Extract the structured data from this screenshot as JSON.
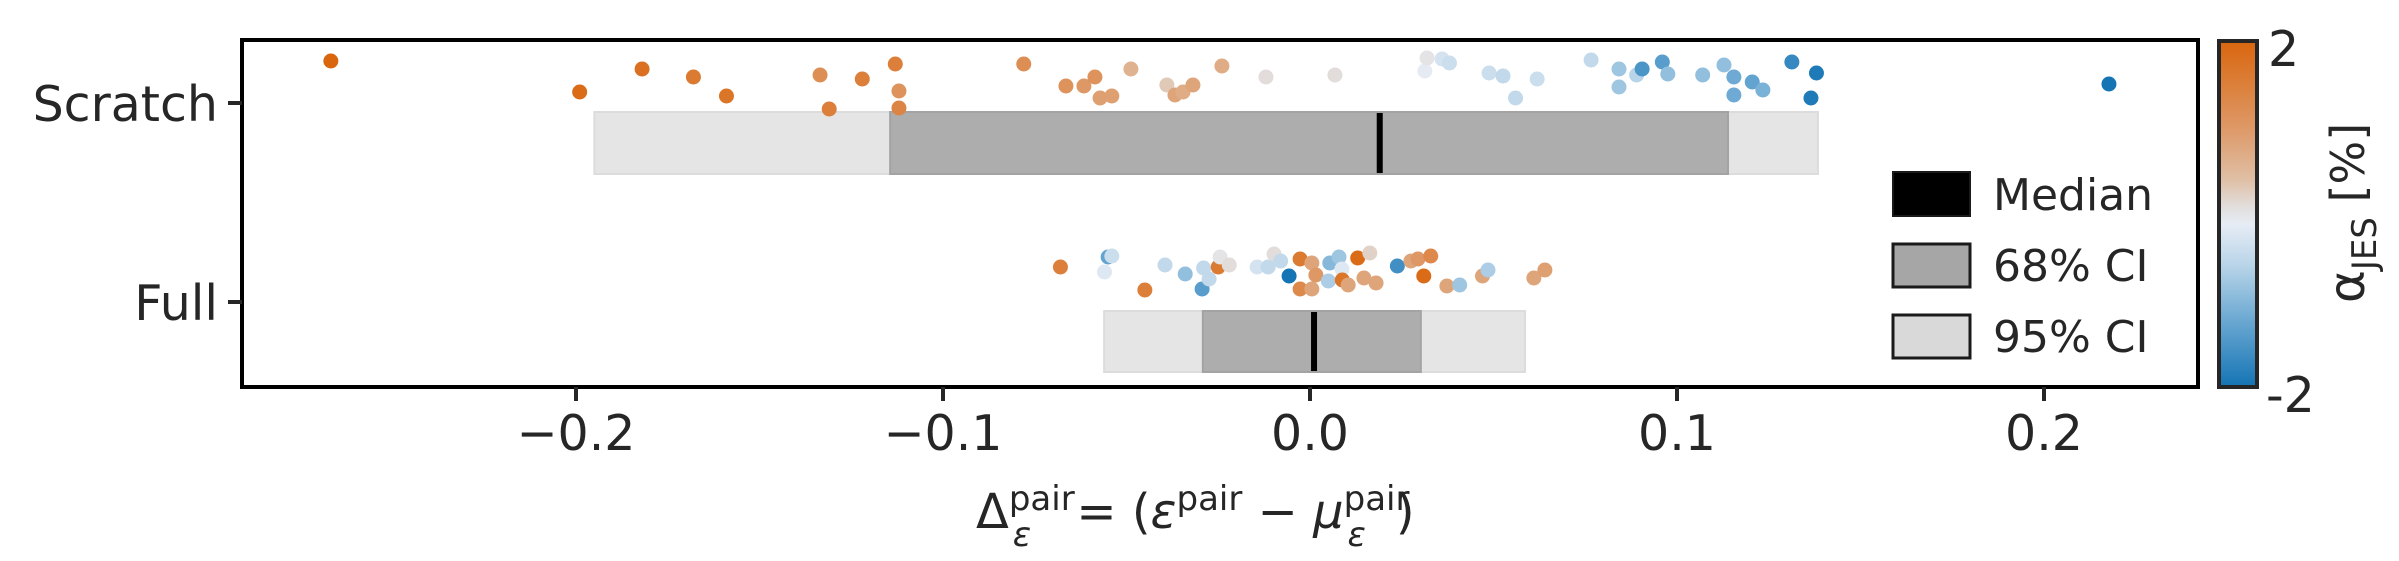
{
  "chart_data": {
    "type": "scatter",
    "subtype": "strip plot with interval boxes",
    "title": "",
    "xlabel": "Δ_ε^pair = (ε^pair − μ_ε^pair)",
    "ylabel": "",
    "xlim": [
      -0.289,
      0.242
    ],
    "x_ticks": [
      -0.2,
      -0.1,
      0.0,
      0.1,
      0.2
    ],
    "x_tick_labels": [
      "−0.2",
      "−0.1",
      "0.0",
      "0.1",
      "0.2"
    ],
    "categories": [
      "Scratch",
      "Full"
    ],
    "grid": false,
    "legend": {
      "position": "lower right",
      "entries": [
        {
          "label": "Median",
          "color": "#000000"
        },
        {
          "label": "68% CI",
          "color": "#a6a6a6"
        },
        {
          "label": "95% CI",
          "color": "#d9d9d9"
        }
      ]
    },
    "colorbar": {
      "label": "α_JES [%]",
      "label_main": "α",
      "label_sub": "JES",
      "label_unit": " [%]",
      "min": -2,
      "max": 2,
      "tick_labels": [
        "2",
        "-2"
      ],
      "stops": [
        {
          "offset": 0.0,
          "color": "#d9660e"
        },
        {
          "offset": 0.25,
          "color": "#de9866"
        },
        {
          "offset": 0.4,
          "color": "#dfbfa5"
        },
        {
          "offset": 0.48,
          "color": "#e2dedd"
        },
        {
          "offset": 0.53,
          "color": "#e6ecf5"
        },
        {
          "offset": 0.65,
          "color": "#b8d4e8"
        },
        {
          "offset": 0.8,
          "color": "#6eaad3"
        },
        {
          "offset": 1.0,
          "color": "#1474b4"
        }
      ]
    },
    "series": [
      {
        "name": "Scratch",
        "median": 0.019,
        "ci68": [
          -0.1144,
          0.1139
        ],
        "ci95": [
          -0.195,
          0.1384
        ],
        "points": [
          {
            "x": -0.2668,
            "jitter": 61,
            "alpha": 2.0
          },
          {
            "x": -0.199,
            "jitter": 92,
            "alpha": 1.9
          },
          {
            "x": -0.182,
            "jitter": 69,
            "alpha": 1.8
          },
          {
            "x": -0.168,
            "jitter": 77,
            "alpha": 1.6
          },
          {
            "x": -0.159,
            "jitter": 96,
            "alpha": 1.7
          },
          {
            "x": -0.1335,
            "jitter": 75,
            "alpha": 1.2
          },
          {
            "x": -0.131,
            "jitter": 109,
            "alpha": 1.5
          },
          {
            "x": -0.122,
            "jitter": 79,
            "alpha": 1.5
          },
          {
            "x": -0.113,
            "jitter": 64,
            "alpha": 1.5
          },
          {
            "x": -0.112,
            "jitter": 91,
            "alpha": 1.1
          },
          {
            "x": -0.112,
            "jitter": 108,
            "alpha": 1.4
          },
          {
            "x": -0.078,
            "jitter": 64,
            "alpha": 1.2
          },
          {
            "x": -0.0665,
            "jitter": 86,
            "alpha": 1.1
          },
          {
            "x": -0.0616,
            "jitter": 86,
            "alpha": 1.0
          },
          {
            "x": -0.0586,
            "jitter": 77,
            "alpha": 1.1
          },
          {
            "x": -0.0572,
            "jitter": 98,
            "alpha": 0.9
          },
          {
            "x": -0.054,
            "jitter": 96,
            "alpha": 0.9
          },
          {
            "x": -0.0488,
            "jitter": 69,
            "alpha": 0.6
          },
          {
            "x": -0.039,
            "jitter": 85,
            "alpha": 0.3
          },
          {
            "x": -0.0368,
            "jitter": 95,
            "alpha": 0.8
          },
          {
            "x": -0.0346,
            "jitter": 92,
            "alpha": 0.7
          },
          {
            "x": -0.0319,
            "jitter": 85,
            "alpha": 0.8
          },
          {
            "x": -0.024,
            "jitter": 66,
            "alpha": 0.7
          },
          {
            "x": -0.012,
            "jitter": 77,
            "alpha": 0.1
          },
          {
            "x": 0.0068,
            "jitter": 75,
            "alpha": 0.1
          },
          {
            "x": 0.0313,
            "jitter": 71,
            "alpha": -0.1
          },
          {
            "x": 0.0319,
            "jitter": 58,
            "alpha": 0.0
          },
          {
            "x": 0.036,
            "jitter": 59,
            "alpha": -0.3
          },
          {
            "x": 0.038,
            "jitter": 63,
            "alpha": -0.4
          },
          {
            "x": 0.0488,
            "jitter": 73,
            "alpha": -0.4
          },
          {
            "x": 0.0526,
            "jitter": 76,
            "alpha": -0.5
          },
          {
            "x": 0.056,
            "jitter": 98,
            "alpha": -0.5
          },
          {
            "x": 0.0619,
            "jitter": 79,
            "alpha": -0.4
          },
          {
            "x": 0.0766,
            "jitter": 60,
            "alpha": -0.5
          },
          {
            "x": 0.0842,
            "jitter": 69,
            "alpha": -0.8
          },
          {
            "x": 0.0842,
            "jitter": 87,
            "alpha": -0.8
          },
          {
            "x": 0.089,
            "jitter": 75,
            "alpha": -0.6
          },
          {
            "x": 0.0905,
            "jitter": 69,
            "alpha": -1.5
          },
          {
            "x": 0.096,
            "jitter": 62,
            "alpha": -1.4
          },
          {
            "x": 0.0975,
            "jitter": 74,
            "alpha": -0.9
          },
          {
            "x": 0.107,
            "jitter": 75,
            "alpha": -0.9
          },
          {
            "x": 0.1128,
            "jitter": 65,
            "alpha": -0.9
          },
          {
            "x": 0.1155,
            "jitter": 77,
            "alpha": -1.2
          },
          {
            "x": 0.1155,
            "jitter": 95,
            "alpha": -1.2
          },
          {
            "x": 0.1205,
            "jitter": 82,
            "alpha": -1.3
          },
          {
            "x": 0.1234,
            "jitter": 90,
            "alpha": -1.1
          },
          {
            "x": 0.1313,
            "jitter": 62,
            "alpha": -1.7
          },
          {
            "x": 0.1365,
            "jitter": 98,
            "alpha": -1.9
          },
          {
            "x": 0.138,
            "jitter": 73,
            "alpha": -1.9
          },
          {
            "x": 0.2177,
            "jitter": 84,
            "alpha": -2.0
          }
        ]
      },
      {
        "name": "Full",
        "median": 0.0011,
        "ci68": [
          -0.0292,
          0.0302
        ],
        "ci95": [
          -0.0561,
          0.0586
        ],
        "points": [
          {
            "x": -0.068,
            "jitter": 267,
            "alpha": 1.5
          },
          {
            "x": -0.056,
            "jitter": 272,
            "alpha": -0.2
          },
          {
            "x": -0.055,
            "jitter": 257,
            "alpha": -1.3
          },
          {
            "x": -0.054,
            "jitter": 256,
            "alpha": -0.4
          },
          {
            "x": -0.045,
            "jitter": 290,
            "alpha": 1.5
          },
          {
            "x": -0.0395,
            "jitter": 265,
            "alpha": -0.5
          },
          {
            "x": -0.034,
            "jitter": 274,
            "alpha": -0.9
          },
          {
            "x": -0.0294,
            "jitter": 289,
            "alpha": -1.4
          },
          {
            "x": -0.029,
            "jitter": 268,
            "alpha": -0.5
          },
          {
            "x": -0.0275,
            "jitter": 279,
            "alpha": -0.5
          },
          {
            "x": -0.025,
            "jitter": 267,
            "alpha": 1.6
          },
          {
            "x": -0.0245,
            "jitter": 257,
            "alpha": 0.0
          },
          {
            "x": -0.022,
            "jitter": 265,
            "alpha": 0.1
          },
          {
            "x": -0.0144,
            "jitter": 267,
            "alpha": -0.3
          },
          {
            "x": -0.0114,
            "jitter": 267,
            "alpha": -0.5
          },
          {
            "x": -0.0098,
            "jitter": 254,
            "alpha": 0.1
          },
          {
            "x": -0.008,
            "jitter": 261,
            "alpha": -0.5
          },
          {
            "x": -0.0057,
            "jitter": 276,
            "alpha": -2.0
          },
          {
            "x": -0.0027,
            "jitter": 259,
            "alpha": 1.6
          },
          {
            "x": -0.0027,
            "jitter": 289,
            "alpha": 1.3
          },
          {
            "x": 0.0005,
            "jitter": 263,
            "alpha": 0.8
          },
          {
            "x": 0.0005,
            "jitter": 289,
            "alpha": 0.8
          },
          {
            "x": 0.0016,
            "jitter": 275,
            "alpha": 1.0
          },
          {
            "x": 0.005,
            "jitter": 281,
            "alpha": -0.7
          },
          {
            "x": 0.0054,
            "jitter": 263,
            "alpha": -1.0
          },
          {
            "x": 0.0079,
            "jitter": 257,
            "alpha": -0.8
          },
          {
            "x": 0.0087,
            "jitter": 269,
            "alpha": -0.2
          },
          {
            "x": 0.0088,
            "jitter": 280,
            "alpha": 1.7
          },
          {
            "x": 0.0104,
            "jitter": 285,
            "alpha": 0.8
          },
          {
            "x": 0.013,
            "jitter": 258,
            "alpha": 1.9
          },
          {
            "x": 0.0147,
            "jitter": 278,
            "alpha": 0.8
          },
          {
            "x": 0.0163,
            "jitter": 253,
            "alpha": 0.2
          },
          {
            "x": 0.018,
            "jitter": 283,
            "alpha": 0.8
          },
          {
            "x": 0.0238,
            "jitter": 266,
            "alpha": -1.6
          },
          {
            "x": 0.0275,
            "jitter": 261,
            "alpha": 0.8
          },
          {
            "x": 0.0294,
            "jitter": 259,
            "alpha": 1.0
          },
          {
            "x": 0.031,
            "jitter": 276,
            "alpha": 1.9
          },
          {
            "x": 0.0329,
            "jitter": 256,
            "alpha": 1.3
          },
          {
            "x": 0.0373,
            "jitter": 286,
            "alpha": 0.8
          },
          {
            "x": 0.0408,
            "jitter": 285,
            "alpha": -0.8
          },
          {
            "x": 0.047,
            "jitter": 276,
            "alpha": 0.8
          },
          {
            "x": 0.0485,
            "jitter": 270,
            "alpha": -0.7
          },
          {
            "x": 0.061,
            "jitter": 278,
            "alpha": 0.8
          },
          {
            "x": 0.064,
            "jitter": 270,
            "alpha": 0.9
          }
        ]
      }
    ]
  }
}
